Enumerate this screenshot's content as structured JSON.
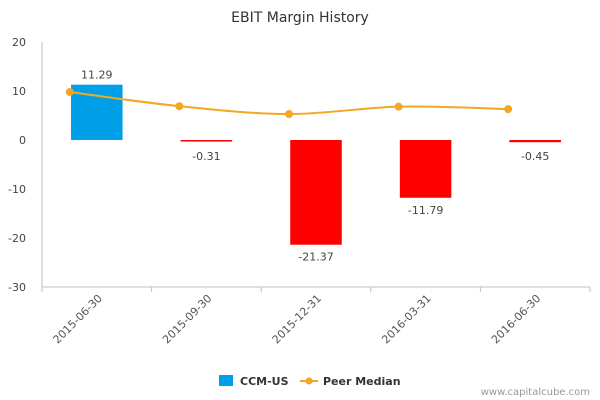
{
  "chart_data": {
    "type": "bar",
    "title": "EBIT Margin History",
    "categories": [
      "2015-06-30",
      "2015-09-30",
      "2015-12-31",
      "2016-03-31",
      "2016-06-30"
    ],
    "series": [
      {
        "name": "CCM-US",
        "type": "bar",
        "values": [
          11.29,
          -0.31,
          -21.37,
          -11.79,
          -0.45
        ],
        "data_labels": [
          "11.29",
          "-0.31",
          "-21.37",
          "-11.79",
          "-0.45"
        ],
        "colors": {
          "positive": "#00a0e9",
          "negative": "#ff0000"
        }
      },
      {
        "name": "Peer Median",
        "type": "line",
        "values": [
          9.8,
          6.9,
          5.3,
          6.8,
          6.3
        ],
        "color": "#f5a623"
      }
    ],
    "ylim": [
      -30,
      20
    ],
    "yticks": [
      20,
      10,
      0,
      -10,
      -20,
      -30
    ],
    "xlabel": "",
    "ylabel": "",
    "grid": false,
    "legend_position": "bottom"
  },
  "legend": {
    "bar_label": "CCM-US",
    "line_label": "Peer Median"
  },
  "watermark": "www.capitalcube.com",
  "colors": {
    "axis": "#c0c0c0",
    "zero_line": "#cccccc",
    "bar_positive": "#00a0e9",
    "bar_negative": "#ff0000",
    "line": "#f5a623"
  }
}
